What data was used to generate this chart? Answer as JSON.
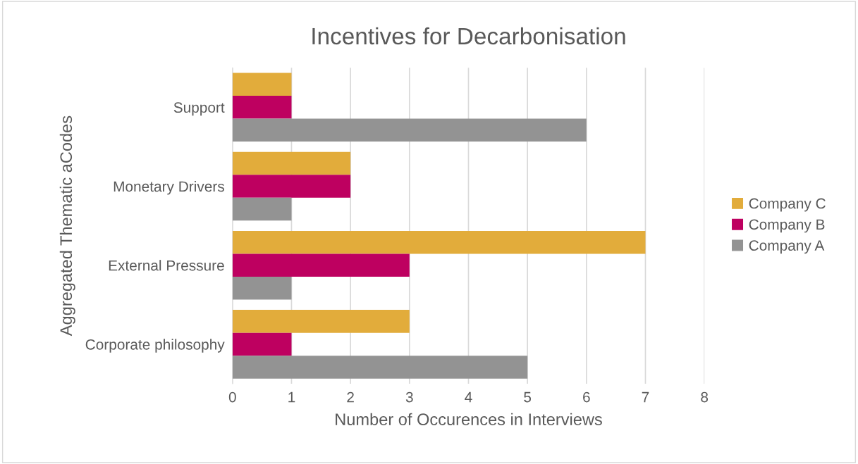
{
  "chart_data": {
    "type": "bar",
    "orientation": "horizontal",
    "title": "Incentives for Decarbonisation",
    "xlabel": "Number of Occurences in Interviews",
    "ylabel": "Aggregated Thematic aCodes",
    "categories": [
      "Support",
      "Monetary Drivers",
      "External Pressure",
      "Corporate philosophy"
    ],
    "series": [
      {
        "name": "Company C",
        "color": "#e2ac3b",
        "values": [
          1,
          2,
          7,
          3
        ]
      },
      {
        "name": "Company B",
        "color": "#be0060",
        "values": [
          1,
          2,
          3,
          1
        ]
      },
      {
        "name": "Company A",
        "color": "#939393",
        "values": [
          6,
          1,
          1,
          5
        ]
      }
    ],
    "xlim": [
      0,
      8
    ],
    "xticks": [
      0,
      1,
      2,
      3,
      4,
      5,
      6,
      7,
      8
    ],
    "grid": "x",
    "legend": "right"
  }
}
